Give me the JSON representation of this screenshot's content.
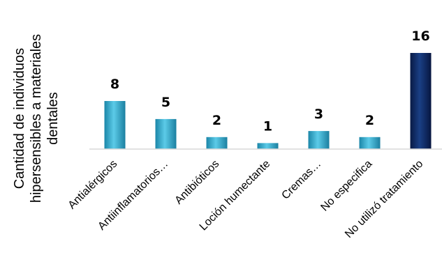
{
  "chart_data": {
    "type": "bar",
    "ylabel_lines": [
      "Cantidad de individuos",
      "hipersensibles a materiales",
      "dentales"
    ],
    "categories": [
      "Antialérgicos",
      "Antiinflamatorios…",
      "Antibióticos",
      "Loción humectante",
      "Cremas…",
      "No especifica",
      "No utilizó tratamiento"
    ],
    "values": [
      8,
      5,
      2,
      1,
      3,
      2,
      16
    ],
    "data_labels": [
      "8",
      "5",
      "2",
      "1",
      "3",
      "2",
      "16"
    ],
    "colors": [
      "#2aa6cc",
      "#2aa6cc",
      "#2aa6cc",
      "#2aa6cc",
      "#2aa6cc",
      "#2aa6cc",
      "#0d2760"
    ],
    "ylim": [
      0,
      16
    ],
    "grid": false,
    "legend": "none"
  }
}
